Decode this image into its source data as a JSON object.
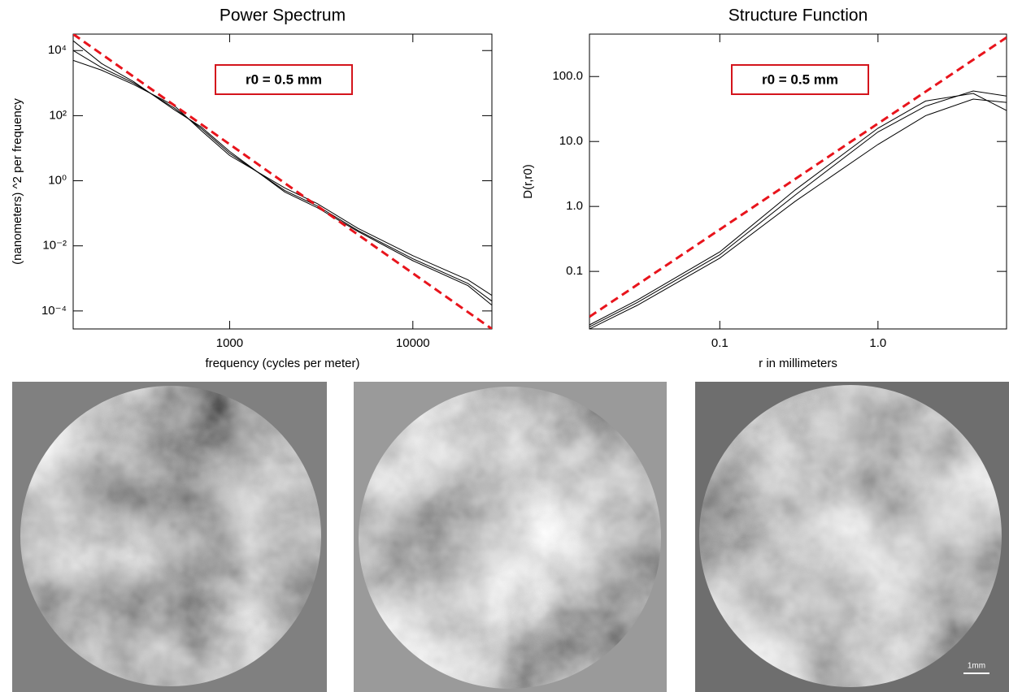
{
  "chart_data": [
    {
      "type": "line",
      "title": "Power Spectrum",
      "xlabel": "frequency (cycles per meter)",
      "ylabel": "(nanometers) ^2 per frequency",
      "annotation": "r0 = 0.5 mm",
      "xscale": "log",
      "yscale": "log",
      "xlim": [
        140,
        27000
      ],
      "ylim": [
        2.8e-05,
        32000
      ],
      "xticks": [
        1000,
        10000
      ],
      "yticks": [
        {
          "value": 10000,
          "label": "10⁴"
        },
        {
          "value": 100,
          "label": "10²"
        },
        {
          "value": 1,
          "label": "10⁰"
        },
        {
          "value": 0.01,
          "label": "10⁻²"
        },
        {
          "value": 0.0001,
          "label": "10⁻⁴"
        }
      ],
      "series": [
        {
          "color": "#000000",
          "x": [
            140,
            200,
            300,
            500,
            700,
            1000,
            2000,
            3000,
            5000,
            10000,
            20000,
            27000
          ],
          "values": [
            10000,
            3000,
            1000,
            170,
            40,
            7,
            0.5,
            0.17,
            0.03,
            0.004,
            0.0007,
            0.0002
          ]
        },
        {
          "color": "#000000",
          "x": [
            140,
            200,
            300,
            500,
            700,
            1000,
            2000,
            3000,
            5000,
            10000,
            20000,
            27000
          ],
          "values": [
            5000,
            2500,
            900,
            200,
            35,
            6,
            0.6,
            0.2,
            0.035,
            0.005,
            0.0009,
            0.0003
          ]
        },
        {
          "color": "#000000",
          "x": [
            140,
            200,
            300,
            500,
            700,
            1000,
            2000,
            3000,
            5000,
            10000,
            20000,
            27000
          ],
          "values": [
            20000,
            4000,
            1100,
            150,
            45,
            8,
            0.45,
            0.15,
            0.028,
            0.0035,
            0.0006,
            0.00015
          ]
        },
        {
          "color": "#e8141c",
          "dashed": true,
          "x": [
            140,
            27000
          ],
          "values": [
            32000,
            2.8e-05
          ]
        }
      ]
    },
    {
      "type": "line",
      "title": "Structure Function",
      "xlabel": "r in millimeters",
      "ylabel": "D(r,r0)",
      "annotation": "r0 = 0.5 mm",
      "xscale": "log",
      "yscale": "log",
      "xlim": [
        0.015,
        6.5
      ],
      "ylim": [
        0.013,
        450
      ],
      "xticks": [
        0.1,
        {
          "value": 1,
          "label": "1.0"
        }
      ],
      "yticks": [
        {
          "value": 100,
          "label": "100.0"
        },
        {
          "value": 10,
          "label": "10.0"
        },
        {
          "value": 1,
          "label": "1.0"
        },
        0.1
      ],
      "series": [
        {
          "color": "#000000",
          "x": [
            0.015,
            0.03,
            0.1,
            0.3,
            1,
            2,
            4,
            6.5
          ],
          "values": [
            0.014,
            0.033,
            0.18,
            1.5,
            14,
            35,
            60,
            50
          ]
        },
        {
          "color": "#000000",
          "x": [
            0.015,
            0.03,
            0.1,
            0.3,
            1,
            2,
            4,
            6.5
          ],
          "values": [
            0.013,
            0.03,
            0.16,
            1.2,
            9,
            25,
            45,
            40
          ]
        },
        {
          "color": "#000000",
          "x": [
            0.015,
            0.03,
            0.1,
            0.3,
            1,
            2,
            4,
            6.5
          ],
          "values": [
            0.015,
            0.036,
            0.2,
            1.8,
            16,
            42,
            55,
            30
          ]
        },
        {
          "color": "#e8141c",
          "dashed": true,
          "x": [
            0.015,
            6.5
          ],
          "values": [
            0.02,
            400
          ]
        }
      ]
    }
  ],
  "phase_screens": {
    "scale_bar_label": "1mm"
  }
}
